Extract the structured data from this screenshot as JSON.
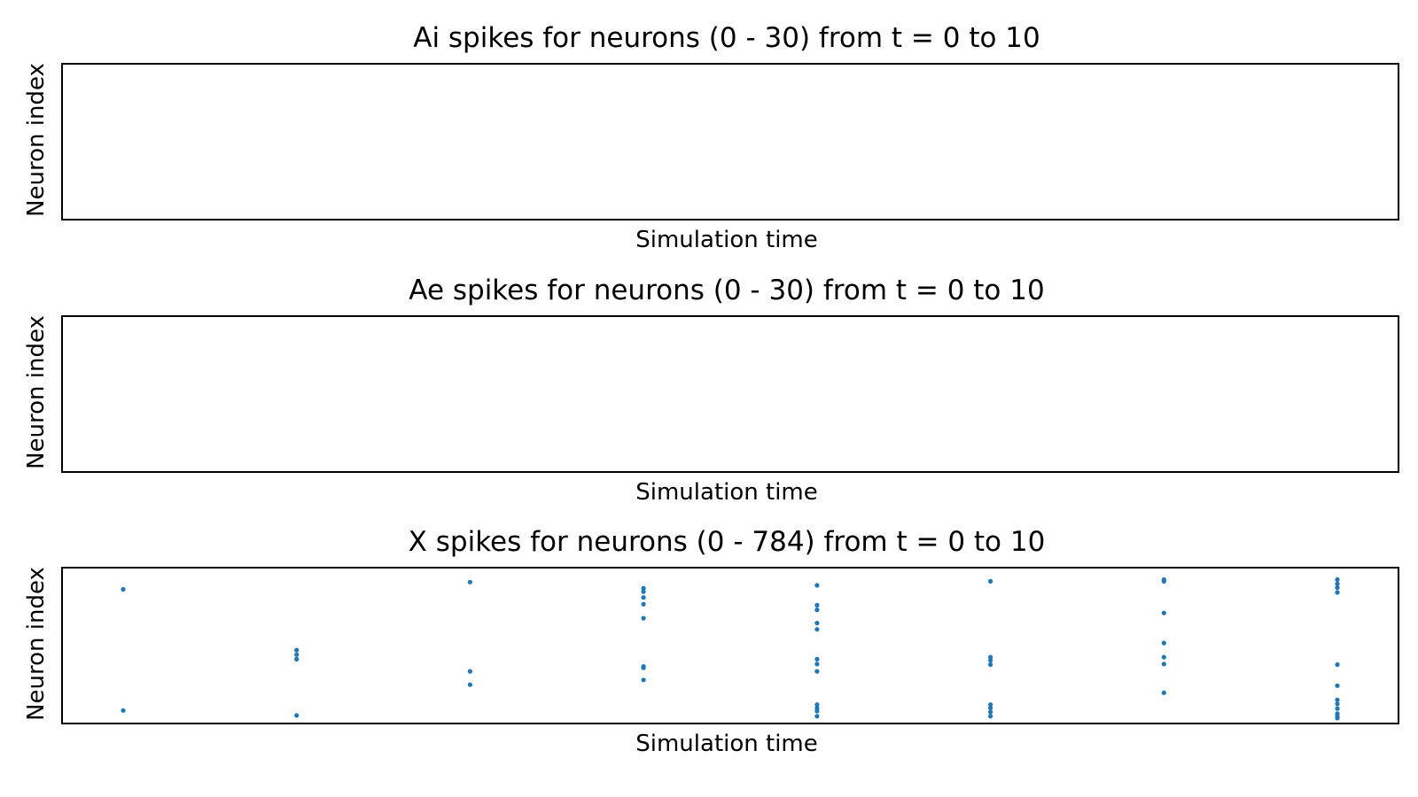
{
  "chart_data": [
    {
      "type": "scatter",
      "title": "Ai spikes for neurons (0 - 30) from t = 0 to 10",
      "xlabel": "Simulation time",
      "ylabel": "Neuron index",
      "xlim": [
        0,
        10
      ],
      "ylim": [
        0,
        30
      ],
      "grid": false,
      "ticks": "hidden",
      "marker_color": "#1f77b4",
      "points": []
    },
    {
      "type": "scatter",
      "title": "Ae spikes for neurons (0 - 30) from t = 0 to 10",
      "xlabel": "Simulation time",
      "ylabel": "Neuron index",
      "xlim": [
        0,
        10
      ],
      "ylim": [
        0,
        30
      ],
      "grid": false,
      "ticks": "hidden",
      "marker_color": "#1f77b4",
      "points": []
    },
    {
      "type": "scatter",
      "title": "X spikes for neurons (0 - 784) from t = 0 to 10",
      "xlabel": "Simulation time",
      "ylabel": "Neuron index",
      "xlim": [
        0,
        10
      ],
      "ylim": [
        0,
        784
      ],
      "grid": false,
      "ticks": "hidden",
      "marker_color": "#1f77b4",
      "points": [
        [
          0,
          701
        ],
        [
          0,
          51
        ],
        [
          1,
          375
        ],
        [
          1,
          350
        ],
        [
          1,
          326
        ],
        [
          1,
          24
        ],
        [
          2,
          740
        ],
        [
          2,
          261
        ],
        [
          2,
          189
        ],
        [
          3,
          706
        ],
        [
          3,
          688
        ],
        [
          3,
          657
        ],
        [
          3,
          621
        ],
        [
          3,
          546
        ],
        [
          3,
          287
        ],
        [
          3,
          280
        ],
        [
          3,
          215
        ],
        [
          4,
          722
        ],
        [
          4,
          616
        ],
        [
          4,
          591
        ],
        [
          4,
          520
        ],
        [
          4,
          486
        ],
        [
          4,
          326
        ],
        [
          4,
          300
        ],
        [
          4,
          261
        ],
        [
          4,
          82
        ],
        [
          4,
          64
        ],
        [
          4,
          48
        ],
        [
          4,
          20
        ],
        [
          5,
          744
        ],
        [
          5,
          337
        ],
        [
          5,
          320
        ],
        [
          5,
          297
        ],
        [
          5,
          82
        ],
        [
          5,
          64
        ],
        [
          5,
          43
        ],
        [
          5,
          20
        ],
        [
          6,
          753
        ],
        [
          6,
          744
        ],
        [
          6,
          574
        ],
        [
          6,
          413
        ],
        [
          6,
          337
        ],
        [
          6,
          300
        ],
        [
          6,
          146
        ],
        [
          7,
          753
        ],
        [
          7,
          731
        ],
        [
          7,
          710
        ],
        [
          7,
          684
        ],
        [
          7,
          297
        ],
        [
          7,
          184
        ],
        [
          7,
          108
        ],
        [
          7,
          86
        ],
        [
          7,
          61
        ],
        [
          7,
          34
        ],
        [
          7,
          20
        ],
        [
          7,
          10
        ]
      ]
    }
  ]
}
